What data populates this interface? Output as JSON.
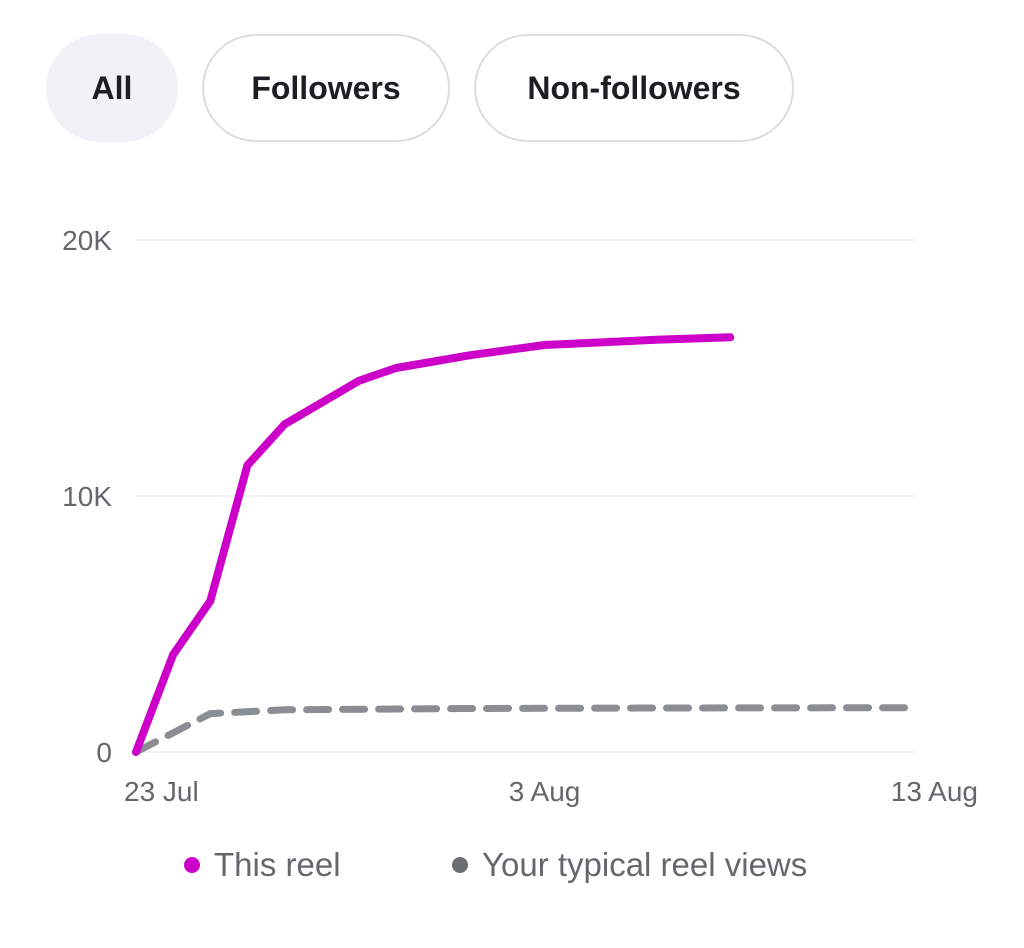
{
  "filters": {
    "all": "All",
    "followers": "Followers",
    "non_followers": "Non-followers"
  },
  "chart_data": {
    "type": "line",
    "x_ticks": [
      "23 Jul",
      "3 Aug",
      "13 Aug"
    ],
    "y_ticks": [
      "20K",
      "10K",
      "0"
    ],
    "ylim": [
      0,
      20000
    ],
    "grid": true,
    "legend_position": "bottom",
    "series": [
      {
        "name": "This reel",
        "color": "#cc00c8",
        "style": "solid",
        "x": [
          "23 Jul",
          "24 Jul",
          "25 Jul",
          "26 Jul",
          "27 Jul",
          "29 Jul",
          "30 Jul",
          "1 Aug",
          "3 Aug",
          "6 Aug",
          "8 Aug"
        ],
        "values": [
          0,
          3800,
          5900,
          11200,
          12800,
          14500,
          15000,
          15500,
          15900,
          16100,
          16200
        ]
      },
      {
        "name": "Your typical reel views",
        "color": "#8a8d91",
        "style": "dashed",
        "x": [
          "23 Jul",
          "25 Jul",
          "27 Jul",
          "1 Aug",
          "6 Aug",
          "13 Aug"
        ],
        "values": [
          0,
          1500,
          1650,
          1700,
          1720,
          1730
        ]
      }
    ]
  },
  "legend": {
    "this_reel": "This reel",
    "typical": "Your typical reel views"
  }
}
